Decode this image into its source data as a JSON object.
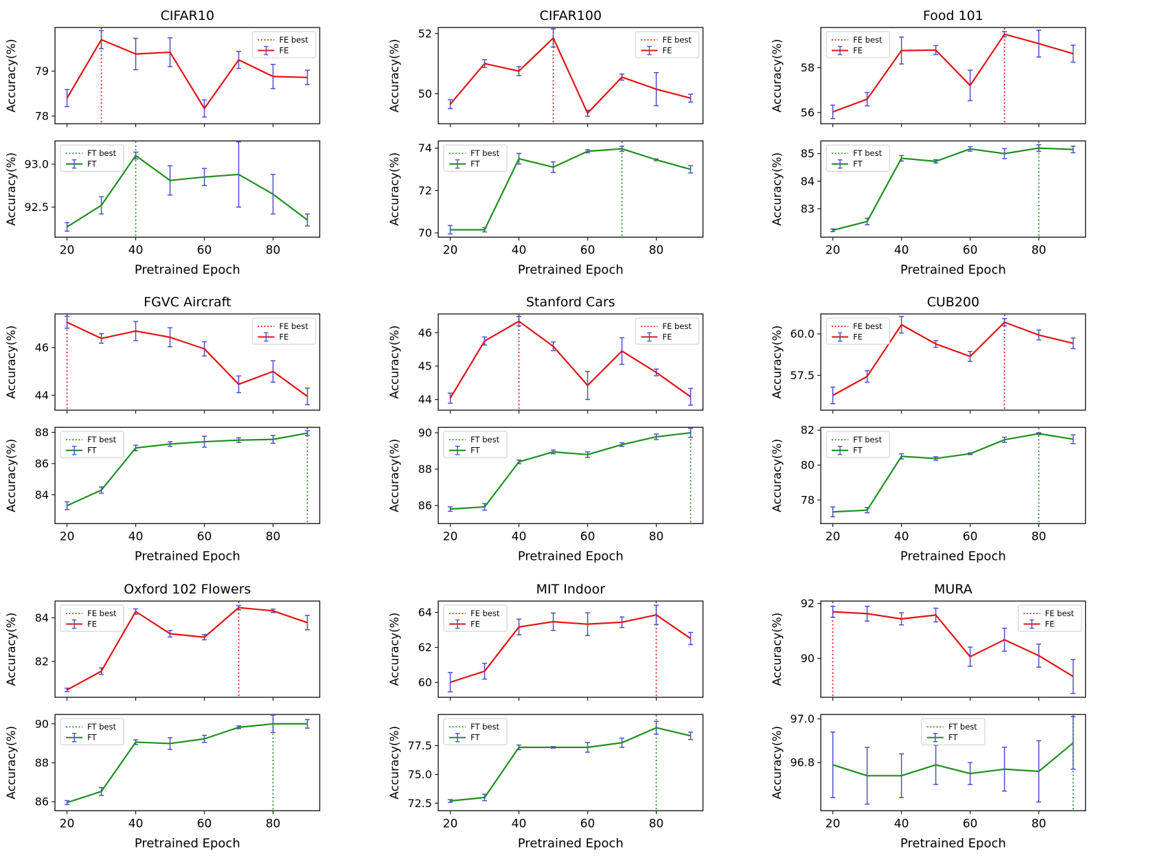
{
  "layout": {
    "xlabel": "Pretrained Epoch",
    "ylabel": "Accuracy(%)",
    "epochs": [
      20,
      30,
      40,
      50,
      60,
      70,
      80,
      90
    ],
    "x_ticks": [
      20,
      40,
      60,
      80
    ],
    "x_tick_labels": [
      "20",
      "40",
      "60",
      "80"
    ],
    "xlim": [
      16.5,
      93.6
    ],
    "grid_lines": false
  },
  "legend": {
    "fe_best": "FE best",
    "fe": "FE",
    "ft_best": "FT best",
    "ft": "FT"
  },
  "colors": {
    "fe_line": "#e31212",
    "ft_line": "#1c8f1c",
    "error_bar": "#4c4cd2",
    "axis": "#1a1a1a",
    "legend_border": "#cccccc",
    "legend_bg": "#ffffff",
    "text": "#000000"
  },
  "chart_data": [
    {
      "type": "line",
      "title": "CIFAR10",
      "subplots": [
        {
          "series": "FE",
          "legend_pos": "right",
          "best_epoch": 30,
          "ylim": [
            77.83,
            79.97
          ],
          "yticks": [
            78,
            79
          ],
          "ytick_labels": [
            "78",
            "79"
          ],
          "values": [
            78.4,
            79.7,
            79.38,
            79.42,
            78.17,
            79.25,
            78.88,
            78.86
          ],
          "errors": [
            0.19,
            0.2,
            0.35,
            0.32,
            0.19,
            0.19,
            0.27,
            0.16
          ]
        },
        {
          "series": "FT",
          "legend_pos": "left",
          "best_epoch": 40,
          "ylim": [
            92.15,
            93.27
          ],
          "yticks": [
            92.5,
            93.0
          ],
          "ytick_labels": [
            "92.5",
            "93.0"
          ],
          "values": [
            92.27,
            92.52,
            93.1,
            92.81,
            92.85,
            92.88,
            92.65,
            92.35
          ],
          "errors": [
            0.05,
            0.1,
            0.04,
            0.17,
            0.1,
            0.38,
            0.23,
            0.07
          ]
        }
      ]
    },
    {
      "type": "line",
      "title": "CIFAR100",
      "subplots": [
        {
          "series": "FE",
          "legend_pos": "right",
          "best_epoch": 50,
          "ylim": [
            49.0,
            52.2
          ],
          "yticks": [
            50,
            52
          ],
          "ytick_labels": [
            "50",
            "52"
          ],
          "values": [
            49.65,
            51.0,
            50.75,
            51.85,
            49.35,
            50.55,
            50.15,
            49.85
          ],
          "errors": [
            0.15,
            0.13,
            0.15,
            0.3,
            0.1,
            0.1,
            0.55,
            0.13
          ]
        },
        {
          "series": "FT",
          "legend_pos": "left",
          "best_epoch": 70,
          "ylim": [
            69.8,
            74.34
          ],
          "yticks": [
            70,
            72,
            74
          ],
          "ytick_labels": [
            "70",
            "72",
            "74"
          ],
          "values": [
            70.15,
            70.15,
            73.5,
            73.1,
            73.85,
            73.97,
            73.45,
            73.0
          ],
          "errors": [
            0.2,
            0.1,
            0.25,
            0.25,
            0.07,
            0.12,
            0.04,
            0.17
          ]
        }
      ]
    },
    {
      "type": "line",
      "title": "Food 101",
      "subplots": [
        {
          "series": "FE",
          "legend_pos": "left",
          "best_epoch": 70,
          "ylim": [
            55.5,
            59.8
          ],
          "yticks": [
            56,
            58
          ],
          "ytick_labels": [
            "56",
            "58"
          ],
          "values": [
            56.03,
            56.6,
            58.77,
            58.79,
            57.21,
            59.5,
            59.08,
            58.63
          ],
          "errors": [
            0.3,
            0.3,
            0.6,
            0.2,
            0.68,
            0.12,
            0.6,
            0.38
          ]
        },
        {
          "series": "FT",
          "legend_pos": "left",
          "best_epoch": 80,
          "ylim": [
            81.97,
            85.46
          ],
          "yticks": [
            83,
            84,
            85
          ],
          "ytick_labels": [
            "83",
            "84",
            "85"
          ],
          "values": [
            82.22,
            82.54,
            84.83,
            84.72,
            85.17,
            85.0,
            85.2,
            85.15
          ],
          "errors": [
            0.05,
            0.12,
            0.1,
            0.06,
            0.08,
            0.18,
            0.12,
            0.12
          ]
        }
      ]
    },
    {
      "type": "line",
      "title": "FGVC Aircraft",
      "subplots": [
        {
          "series": "FE",
          "legend_pos": "right",
          "best_epoch": 20,
          "ylim": [
            43.37,
            47.42
          ],
          "yticks": [
            44,
            46
          ],
          "ytick_labels": [
            "44",
            "46"
          ],
          "values": [
            47.07,
            46.39,
            46.7,
            46.44,
            45.95,
            44.46,
            45.0,
            43.95
          ],
          "errors": [
            0.25,
            0.2,
            0.4,
            0.4,
            0.3,
            0.35,
            0.45,
            0.35
          ]
        },
        {
          "series": "FT",
          "legend_pos": "left",
          "best_epoch": 90,
          "ylim": [
            82.15,
            88.32
          ],
          "yticks": [
            84,
            86,
            88
          ],
          "ytick_labels": [
            "84",
            "86",
            "88"
          ],
          "values": [
            83.3,
            84.3,
            87.0,
            87.25,
            87.4,
            87.5,
            87.55,
            87.95
          ],
          "errors": [
            0.25,
            0.2,
            0.18,
            0.15,
            0.35,
            0.15,
            0.25,
            0.15
          ]
        }
      ]
    },
    {
      "type": "line",
      "title": "Stanford Cars",
      "subplots": [
        {
          "series": "FE",
          "legend_pos": "right",
          "best_epoch": 40,
          "ylim": [
            43.68,
            46.56
          ],
          "yticks": [
            44,
            45,
            46
          ],
          "ytick_labels": [
            "44",
            "45",
            "46"
          ],
          "values": [
            44.04,
            45.75,
            46.34,
            45.59,
            44.42,
            45.45,
            44.81,
            44.08
          ],
          "errors": [
            0.15,
            0.12,
            0.14,
            0.13,
            0.42,
            0.4,
            0.1,
            0.25
          ]
        },
        {
          "series": "FT",
          "legend_pos": "left",
          "best_epoch": 90,
          "ylim": [
            85.0,
            90.3
          ],
          "yticks": [
            86,
            88,
            90
          ],
          "ytick_labels": [
            "86",
            "88",
            "90"
          ],
          "values": [
            85.8,
            85.92,
            88.4,
            88.95,
            88.8,
            89.35,
            89.78,
            90.0
          ],
          "errors": [
            0.12,
            0.18,
            0.1,
            0.1,
            0.15,
            0.1,
            0.15,
            0.25
          ]
        }
      ]
    },
    {
      "type": "line",
      "title": "CUB200",
      "subplots": [
        {
          "series": "FE",
          "legend_pos": "left",
          "best_epoch": 70,
          "ylim": [
            55.4,
            61.2
          ],
          "yticks": [
            57.5,
            60.0
          ],
          "ytick_labels": [
            "57.5",
            "60.0"
          ],
          "values": [
            56.29,
            57.43,
            60.55,
            59.39,
            58.64,
            60.7,
            59.93,
            59.43
          ],
          "errors": [
            0.5,
            0.35,
            0.5,
            0.2,
            0.3,
            0.22,
            0.3,
            0.32
          ]
        },
        {
          "series": "FT",
          "legend_pos": "left",
          "best_epoch": 80,
          "ylim": [
            76.65,
            82.16
          ],
          "yticks": [
            78,
            80,
            82
          ],
          "ytick_labels": [
            "78",
            "80",
            "82"
          ],
          "values": [
            77.32,
            77.42,
            80.5,
            80.38,
            80.65,
            81.45,
            81.8,
            81.48
          ],
          "errors": [
            0.28,
            0.15,
            0.15,
            0.1,
            0.05,
            0.15,
            0.05,
            0.25
          ]
        }
      ]
    },
    {
      "type": "line",
      "title": "Oxford 102 Flowers",
      "subplots": [
        {
          "series": "FE",
          "legend_pos": "left",
          "best_epoch": 70,
          "ylim": [
            80.35,
            84.77
          ],
          "yticks": [
            82,
            84
          ],
          "ytick_labels": [
            "82",
            "84"
          ],
          "values": [
            80.69,
            81.55,
            84.29,
            83.27,
            83.11,
            84.47,
            84.32,
            83.78
          ],
          "errors": [
            0.08,
            0.15,
            0.12,
            0.15,
            0.12,
            0.1,
            0.08,
            0.33
          ]
        },
        {
          "series": "FT",
          "legend_pos": "left",
          "best_epoch": 80,
          "ylim": [
            85.54,
            90.48
          ],
          "yticks": [
            86,
            88,
            90
          ],
          "ytick_labels": [
            "86",
            "88",
            "90"
          ],
          "values": [
            85.96,
            86.53,
            89.06,
            88.99,
            89.23,
            89.82,
            90.0,
            90.0
          ],
          "errors": [
            0.1,
            0.2,
            0.12,
            0.3,
            0.18,
            0.07,
            0.45,
            0.22
          ]
        }
      ]
    },
    {
      "type": "line",
      "title": "MIT Indoor",
      "subplots": [
        {
          "series": "FE",
          "legend_pos": "left",
          "best_epoch": 80,
          "ylim": [
            59.15,
            64.65
          ],
          "yticks": [
            60,
            62,
            64
          ],
          "ytick_labels": [
            "60",
            "62",
            "64"
          ],
          "values": [
            60.01,
            60.64,
            63.17,
            63.47,
            63.33,
            63.44,
            63.86,
            62.51
          ],
          "errors": [
            0.55,
            0.45,
            0.45,
            0.5,
            0.65,
            0.3,
            0.55,
            0.35
          ]
        },
        {
          "series": "FT",
          "legend_pos": "left",
          "best_epoch": 80,
          "ylim": [
            71.85,
            80.2
          ],
          "yticks": [
            72.5,
            75.0,
            77.5
          ],
          "ytick_labels": [
            "72.5",
            "75.0",
            "77.5"
          ],
          "values": [
            72.7,
            73.0,
            77.35,
            77.35,
            77.35,
            77.75,
            79.05,
            78.35
          ],
          "errors": [
            0.12,
            0.28,
            0.2,
            0.07,
            0.42,
            0.4,
            0.55,
            0.32
          ]
        }
      ]
    },
    {
      "type": "line",
      "title": "MURA",
      "subplots": [
        {
          "series": "FE",
          "legend_pos": "right",
          "best_epoch": 20,
          "ylim": [
            88.58,
            92.09
          ],
          "yticks": [
            90,
            92
          ],
          "ytick_labels": [
            "90",
            "92"
          ],
          "values": [
            91.7,
            91.63,
            91.44,
            91.58,
            90.06,
            90.68,
            90.1,
            89.34
          ],
          "errors": [
            0.2,
            0.27,
            0.22,
            0.25,
            0.35,
            0.42,
            0.42,
            0.62
          ]
        },
        {
          "series": "FT",
          "legend_pos": "center",
          "best_epoch": 90,
          "ylim": [
            96.58,
            97.02
          ],
          "yticks": [
            96.8,
            97.0
          ],
          "ytick_labels": [
            "96.8",
            "97.0"
          ],
          "values": [
            96.79,
            96.74,
            96.74,
            96.79,
            96.75,
            96.77,
            96.76,
            96.89
          ],
          "errors": [
            0.15,
            0.13,
            0.1,
            0.09,
            0.05,
            0.1,
            0.14,
            0.12
          ]
        }
      ]
    }
  ]
}
